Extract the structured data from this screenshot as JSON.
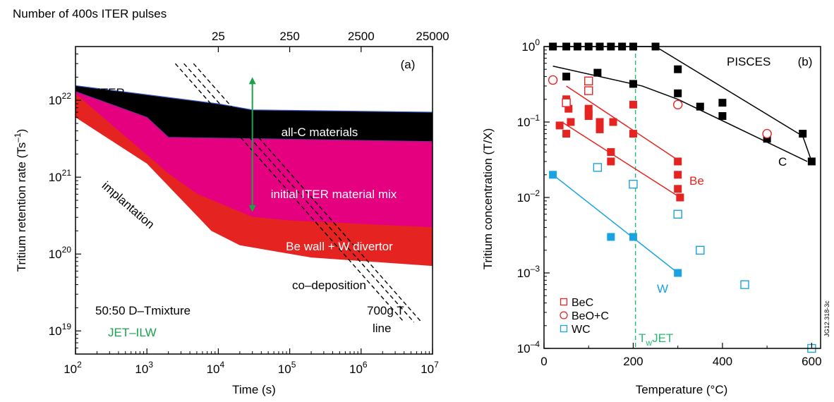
{
  "chart_data": [
    {
      "type": "area",
      "panel_label": "(a)",
      "xlabel": "Time (s)",
      "ylabel_main": "Tritium retention rate (Ts",
      "ylabel_sup": "–1",
      "ylabel_close": ")",
      "xscale": "log",
      "yscale": "log",
      "xlim": [
        100,
        10000000
      ],
      "ylim": [
        5000000000000000000,
        50000000000000000000000
      ],
      "x_ticks": [
        {
          "value": 100,
          "base": "10",
          "exp": "2"
        },
        {
          "value": 1000,
          "base": "10",
          "exp": "3"
        },
        {
          "value": 10000,
          "base": "10",
          "exp": "4"
        },
        {
          "value": 100000,
          "base": "10",
          "exp": "5"
        },
        {
          "value": 1000000,
          "base": "10",
          "exp": "6"
        },
        {
          "value": 10000000,
          "base": "10",
          "exp": "7"
        }
      ],
      "y_ticks": [
        {
          "value": 10000000000000000000,
          "base": "10",
          "exp": "19"
        },
        {
          "value": 100000000000000000000,
          "base": "10",
          "exp": "20"
        },
        {
          "value": 1000000000000000000000,
          "base": "10",
          "exp": "21"
        },
        {
          "value": 10000000000000000000000,
          "base": "10",
          "exp": "22"
        }
      ],
      "top_axis": {
        "label": "Number of 400s ITER pulses",
        "ticks": [
          {
            "label": "25",
            "time": 10000
          },
          {
            "label": "250",
            "time": 100000
          },
          {
            "label": "2500",
            "time": 1000000
          },
          {
            "label": "25000",
            "time": 10000000
          }
        ]
      },
      "bands": [
        {
          "name": "all-C materials",
          "color": "#000000",
          "edge": "#3a5ccc",
          "upper": [
            [
              100,
              1.55e+22
            ],
            [
              10000,
              9e+21
            ],
            [
              30000,
              7.5e+21
            ],
            [
              10000000,
              7e+21
            ]
          ],
          "lower": [
            [
              100,
              1.3e+22
            ],
            [
              1000,
              6e+21
            ],
            [
              2000,
              3.3e+21
            ],
            [
              10000000,
              2.9e+21
            ]
          ]
        },
        {
          "name": "initial ITER material mix",
          "color": "#e4007f",
          "edge": "#7a2a8a",
          "upper": [
            [
              100,
              1.3e+22
            ],
            [
              1000,
              6e+21
            ],
            [
              2000,
              3.3e+21
            ],
            [
              10000000,
              2.9e+21
            ]
          ],
          "lower": [
            [
              100,
              1.2e+22
            ],
            [
              2000,
              1.1e+21
            ],
            [
              5000,
              6e+20
            ],
            [
              30000,
              3e+20
            ],
            [
              100000,
              2.7e+20
            ],
            [
              10000000,
              2.2e+20
            ]
          ]
        },
        {
          "name": "Be wall + W divertor",
          "color": "#e52421",
          "edge": "#e52421",
          "upper": [
            [
              100,
              1.2e+22
            ],
            [
              2000,
              1.1e+21
            ],
            [
              5000,
              6e+20
            ],
            [
              30000,
              3e+20
            ],
            [
              100000,
              2.7e+20
            ],
            [
              10000000,
              2.2e+20
            ]
          ],
          "lower": [
            [
              100,
              6e+21
            ],
            [
              1000,
              1.5e+21
            ],
            [
              8000,
              2e+20
            ],
            [
              20000,
              1.3e+20
            ],
            [
              200000,
              9e+19
            ],
            [
              10000000,
              7e+19
            ]
          ]
        }
      ],
      "T_lines": {
        "label_1": "700g T",
        "label_2": "line",
        "style": "dashed",
        "lines": [
          [
            [
              2500,
              3e+22
            ],
            [
              4000000,
              1.3e+19
            ]
          ],
          [
            [
              3300,
              3e+22
            ],
            [
              5500000,
              1.3e+19
            ]
          ],
          [
            [
              4500,
              3e+22
            ],
            [
              7000000,
              1.3e+19
            ]
          ]
        ]
      },
      "arrow": {
        "x": 30000,
        "y_from": 2e+22,
        "y_to": 3.5e+20,
        "color": "#1aa34a"
      },
      "annotations": {
        "iter": "ITER",
        "implantation": "implantation",
        "codeposition": "co–deposition",
        "mixture": "50:50 D–Tmixture",
        "jet_ilw": "JET–ILW"
      }
    },
    {
      "type": "scatter",
      "panel_label": "(b)",
      "title": "PISCES",
      "xlabel": "Temperature (°C)",
      "ylabel": "Tritium concentration (T/X)",
      "xscale": "linear",
      "yscale": "log",
      "xlim": [
        0,
        620
      ],
      "ylim": [
        0.0001,
        1
      ],
      "x_ticks": [
        {
          "value": 0,
          "label": "0"
        },
        {
          "value": 200,
          "label": "200"
        },
        {
          "value": 400,
          "label": "400"
        },
        {
          "value": 600,
          "label": "600"
        }
      ],
      "y_ticks": [
        {
          "value": 0.0001,
          "base": "10",
          "exp": "–4"
        },
        {
          "value": 0.001,
          "base": "10",
          "exp": "–3"
        },
        {
          "value": 0.01,
          "base": "10",
          "exp": "–2"
        },
        {
          "value": 0.1,
          "base": "10",
          "exp": "–1"
        },
        {
          "value": 1,
          "base": "10",
          "exp": "0"
        }
      ],
      "vline": {
        "x": 205,
        "label_main": "T",
        "label_sub": "w",
        "label_rest": "JET",
        "color": "#2bb673"
      },
      "series": [
        {
          "name": "C",
          "color": "#000000",
          "marker": "square-filled",
          "points": [
            [
              20,
              1.0
            ],
            [
              50,
              1.0
            ],
            [
              75,
              1.0
            ],
            [
              100,
              1.0
            ],
            [
              125,
              1.0
            ],
            [
              150,
              1.0
            ],
            [
              175,
              1.0
            ],
            [
              200,
              1.0
            ],
            [
              250,
              1.0
            ],
            [
              50,
              0.4
            ],
            [
              120,
              0.45
            ],
            [
              200,
              0.32
            ],
            [
              300,
              0.5
            ],
            [
              300,
              0.24
            ],
            [
              350,
              0.16
            ],
            [
              400,
              0.18
            ],
            [
              400,
              0.12
            ],
            [
              500,
              0.06
            ],
            [
              580,
              0.07
            ],
            [
              600,
              0.03
            ]
          ],
          "fits": [
            [
              [
                20,
                1.0
              ],
              [
                250,
                1.0
              ],
              [
                580,
                0.065
              ],
              [
                600,
                0.03
              ]
            ],
            [
              [
                20,
                0.55
              ],
              [
                220,
                0.3
              ],
              [
                300,
                0.2
              ],
              [
                590,
                0.03
              ]
            ]
          ]
        },
        {
          "name": "Be",
          "color": "#e52421",
          "marker": "square-filled",
          "points": [
            [
              35,
              0.09
            ],
            [
              50,
              0.07
            ],
            [
              60,
              0.1
            ],
            [
              100,
              0.12
            ],
            [
              100,
              0.15
            ],
            [
              100,
              0.13
            ],
            [
              125,
              0.08
            ],
            [
              125,
              0.1
            ],
            [
              150,
              0.04
            ],
            [
              155,
              0.1
            ],
            [
              150,
              0.03
            ],
            [
              200,
              0.17
            ],
            [
              200,
              0.07
            ],
            [
              300,
              0.03
            ],
            [
              300,
              0.02
            ],
            [
              300,
              0.013
            ],
            [
              305,
              0.01
            ],
            [
              50,
              0.2
            ],
            [
              55,
              0.15
            ]
          ],
          "fits": [
            [
              [
                50,
                0.3
              ],
              [
                305,
                0.03
              ]
            ],
            [
              [
                40,
                0.1
              ],
              [
                305,
                0.01
              ]
            ]
          ]
        },
        {
          "name": "W",
          "color": "#1aa3e0",
          "marker": "square-filled",
          "points": [
            [
              20,
              0.02
            ],
            [
              150,
              0.003
            ],
            [
              200,
              0.003
            ],
            [
              300,
              0.001
            ]
          ],
          "fits": [
            [
              [
                20,
                0.02
              ],
              [
                300,
                0.001
              ]
            ]
          ]
        },
        {
          "name": "BeC",
          "color": "#e52421",
          "marker": "square-open",
          "points": [
            [
              50,
              0.18
            ],
            [
              100,
              0.35
            ],
            [
              100,
              0.26
            ]
          ]
        },
        {
          "name": "BeO+C",
          "color": "#e52421",
          "marker": "circle-open",
          "points": [
            [
              20,
              0.36
            ],
            [
              300,
              0.17
            ],
            [
              500,
              0.07
            ]
          ]
        },
        {
          "name": "WC",
          "color": "#1aa3e0",
          "marker": "square-open",
          "points": [
            [
              120,
              0.025
            ],
            [
              200,
              0.015
            ],
            [
              300,
              0.006
            ],
            [
              350,
              0.002
            ],
            [
              450,
              0.0007
            ],
            [
              600,
              0.0001
            ]
          ]
        }
      ],
      "series_labels": {
        "C": "C",
        "Be": "Be",
        "W": "W"
      },
      "legend": [
        {
          "label": "BeC",
          "marker": "square-open",
          "color": "#e52421"
        },
        {
          "label": "BeO+C",
          "marker": "circle-open",
          "color": "#e52421"
        },
        {
          "label": "WC",
          "marker": "square-open",
          "color": "#1aa3e0"
        }
      ],
      "legend_position": "bottom-left",
      "figure_code": "JG12.318-3c"
    }
  ]
}
